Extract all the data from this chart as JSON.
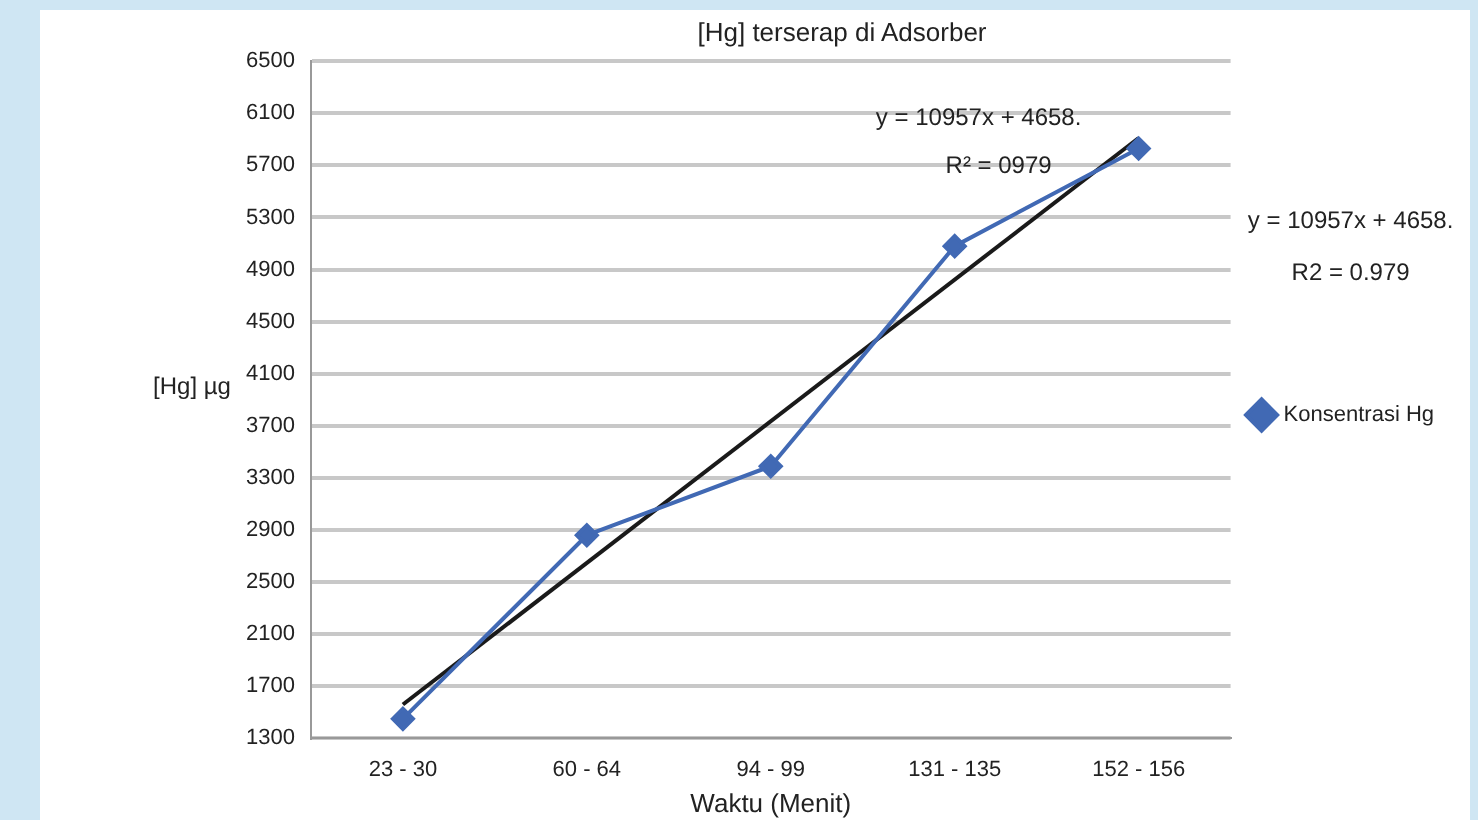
{
  "chart_data": {
    "type": "line",
    "title": "[Hg] terserap di Adsorber",
    "xlabel": "Waktu (Menit)",
    "ylabel": "[Hg] µg",
    "categories": [
      "23 - 30",
      "60 - 64",
      "94 - 99",
      "131 - 135",
      "152 - 156"
    ],
    "series": [
      {
        "name": "Konsentrasi Hg",
        "color": "#4169b4",
        "values": [
          1450,
          2860,
          3390,
          5080,
          5830
        ],
        "marker": "diamond"
      },
      {
        "type": "line",
        "color": "#1a1a1a",
        "x": [
          "23 - 30",
          "152 - 156"
        ],
        "values": [
          1560,
          5910
        ],
        "marker": "none"
      }
    ],
    "ylim": [
      1300,
      6500
    ],
    "yticks": [
      1300,
      1700,
      2100,
      2500,
      2900,
      3300,
      3700,
      4100,
      4500,
      4900,
      5300,
      5700,
      6100,
      6500
    ],
    "grid": "y",
    "legend": "right",
    "annotations": [
      "y = 10957x + 4658.",
      "R² = 0979",
      "y = 10957x + 4658.",
      "R2 = 0.979"
    ]
  }
}
